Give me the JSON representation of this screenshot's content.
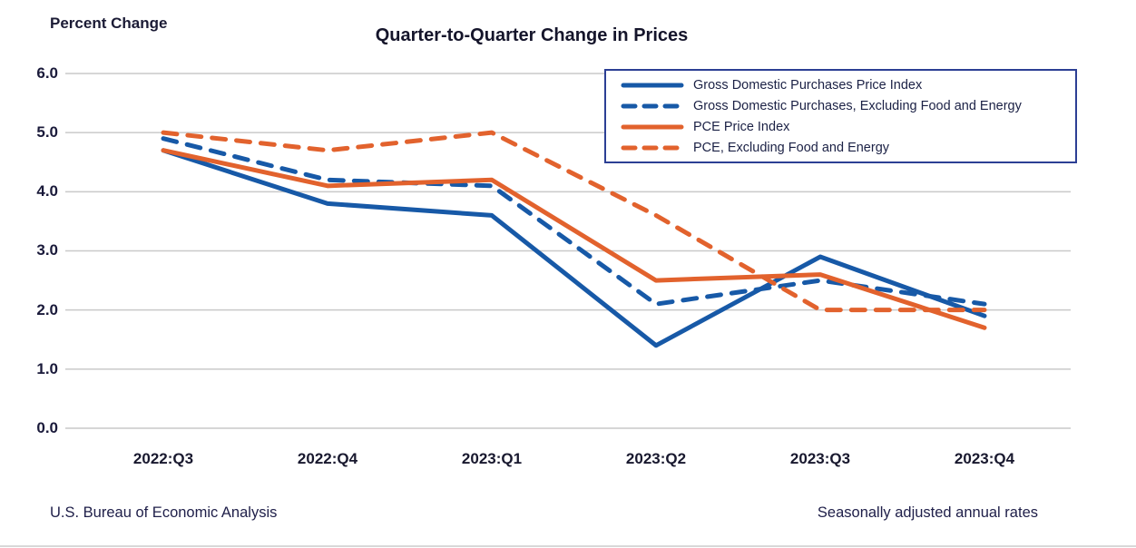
{
  "title": "Quarter-to-Quarter Change in Prices",
  "y_axis_title": "Percent Change",
  "footer_left": "U.S. Bureau of Economic Analysis",
  "footer_right": "Seasonally adjusted annual rates",
  "colors": {
    "blue": "#1759a7",
    "orange": "#e2622d",
    "grid": "#c9c9c9",
    "legend_border": "#2c3f94",
    "text_dark": "#1a1a3a"
  },
  "chart_data": {
    "type": "line",
    "categories": [
      "2022:Q3",
      "2022:Q4",
      "2023:Q1",
      "2023:Q2",
      "2023:Q3",
      "2023:Q4"
    ],
    "series": [
      {
        "name": "Gross Domestic Purchases Price Index",
        "color_key": "blue",
        "style": "solid",
        "values": [
          4.7,
          3.8,
          3.6,
          1.4,
          2.9,
          1.9
        ]
      },
      {
        "name": "Gross Domestic Purchases, Excluding Food and Energy",
        "color_key": "blue",
        "style": "dashed",
        "values": [
          4.9,
          4.2,
          4.1,
          2.1,
          2.5,
          2.1
        ]
      },
      {
        "name": "PCE Price Index",
        "color_key": "orange",
        "style": "solid",
        "values": [
          4.7,
          4.1,
          4.2,
          2.5,
          2.6,
          1.7
        ]
      },
      {
        "name": "PCE, Excluding Food and Energy",
        "color_key": "orange",
        "style": "dashed",
        "values": [
          5.0,
          4.7,
          5.0,
          3.6,
          2.0,
          2.0
        ]
      }
    ],
    "ylabel": "Percent Change",
    "xlabel": "",
    "ylim": [
      0.0,
      6.0
    ],
    "yticks": [
      "6.0",
      "5.0",
      "4.0",
      "3.0",
      "2.0",
      "1.0",
      "0.0"
    ],
    "ytick_values": [
      6.0,
      5.0,
      4.0,
      3.0,
      2.0,
      1.0,
      0.0
    ],
    "grid": true,
    "legend_position": "top-right"
  }
}
